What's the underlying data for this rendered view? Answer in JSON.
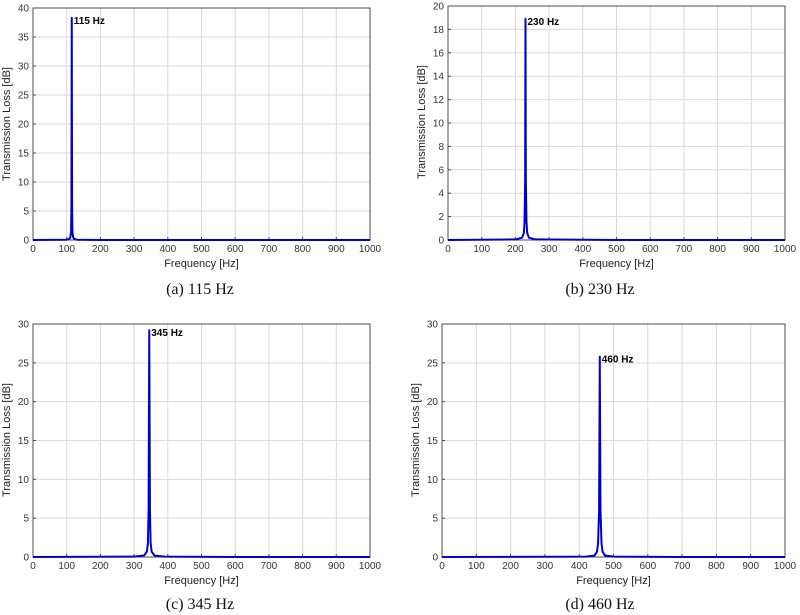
{
  "chart_data": [
    {
      "type": "line",
      "caption": "(a)  115 Hz",
      "xlabel": "Frequency [Hz]",
      "ylabel": "Transmission Loss [dB]",
      "xlim": [
        0,
        1000
      ],
      "ylim": [
        0,
        40
      ],
      "xticks": [
        0,
        100,
        200,
        300,
        400,
        500,
        600,
        700,
        800,
        900,
        1000
      ],
      "yticks": [
        0,
        5,
        10,
        15,
        20,
        25,
        30,
        35,
        40
      ],
      "grid": true,
      "series": [
        {
          "name": "Transmission Loss",
          "color": "#0000cc",
          "x": [
            0,
            100,
            108,
            111,
            113,
            114,
            115,
            116,
            117,
            119,
            122,
            130,
            200,
            500,
            1000
          ],
          "y": [
            0,
            0.05,
            0.2,
            0.5,
            1.5,
            6,
            38.3,
            6,
            1.5,
            0.5,
            0.2,
            0.05,
            0,
            0,
            0
          ]
        }
      ],
      "annotation": {
        "x": 115,
        "y": 38.3,
        "text": "115 Hz"
      }
    },
    {
      "type": "line",
      "caption": "(b)  230 Hz",
      "xlabel": "Frequency [Hz]",
      "ylabel": "Transmission Loss [dB]",
      "xlim": [
        0,
        1000
      ],
      "ylim": [
        0,
        20
      ],
      "xticks": [
        0,
        100,
        200,
        300,
        400,
        500,
        600,
        700,
        800,
        900,
        1000
      ],
      "yticks": [
        0,
        2,
        4,
        6,
        8,
        10,
        12,
        14,
        16,
        18,
        20
      ],
      "grid": true,
      "series": [
        {
          "name": "Transmission Loss",
          "color": "#0000cc",
          "x": [
            0,
            200,
            220,
            225,
            227,
            229,
            230,
            231,
            233,
            235,
            240,
            260,
            500,
            1000
          ],
          "y": [
            0,
            0.05,
            0.2,
            0.6,
            1.5,
            5,
            18.9,
            5,
            1.5,
            0.6,
            0.2,
            0.05,
            0,
            0
          ]
        }
      ],
      "annotation": {
        "x": 230,
        "y": 18.9,
        "text": "230 Hz"
      }
    },
    {
      "type": "line",
      "caption": "(c)  345 Hz",
      "xlabel": "Frequency [Hz]",
      "ylabel": "Transmission Loss [dB]",
      "xlim": [
        0,
        1000
      ],
      "ylim": [
        0,
        30
      ],
      "xticks": [
        0,
        100,
        200,
        300,
        400,
        500,
        600,
        700,
        800,
        900,
        1000
      ],
      "yticks": [
        0,
        5,
        10,
        15,
        20,
        25,
        30
      ],
      "grid": true,
      "series": [
        {
          "name": "Transmission Loss",
          "color": "#0000cc",
          "x": [
            0,
            300,
            330,
            338,
            341,
            343,
            345,
            347,
            349,
            352,
            360,
            390,
            600,
            1000
          ],
          "y": [
            0,
            0.05,
            0.2,
            0.7,
            1.8,
            6,
            29.2,
            6,
            1.8,
            0.7,
            0.2,
            0.05,
            0,
            0
          ]
        }
      ],
      "annotation": {
        "x": 345,
        "y": 29.2,
        "text": "345 Hz"
      }
    },
    {
      "type": "line",
      "caption": "(d)  460 Hz",
      "xlabel": "Frequency [Hz]",
      "ylabel": "Transmission Loss [dB]",
      "xlim": [
        0,
        1000
      ],
      "ylim": [
        0,
        30
      ],
      "xticks": [
        0,
        100,
        200,
        300,
        400,
        500,
        600,
        700,
        800,
        900,
        1000
      ],
      "yticks": [
        0,
        5,
        10,
        15,
        20,
        25,
        30
      ],
      "grid": true,
      "series": [
        {
          "name": "Transmission Loss",
          "color": "#0000cc",
          "x": [
            0,
            420,
            445,
            452,
            455,
            458,
            460,
            462,
            465,
            468,
            475,
            500,
            700,
            1000
          ],
          "y": [
            0,
            0.05,
            0.2,
            0.7,
            1.8,
            6,
            25.8,
            6,
            1.8,
            0.7,
            0.2,
            0.05,
            0,
            0
          ]
        }
      ],
      "annotation": {
        "x": 460,
        "y": 25.8,
        "text": "460 Hz"
      }
    }
  ]
}
